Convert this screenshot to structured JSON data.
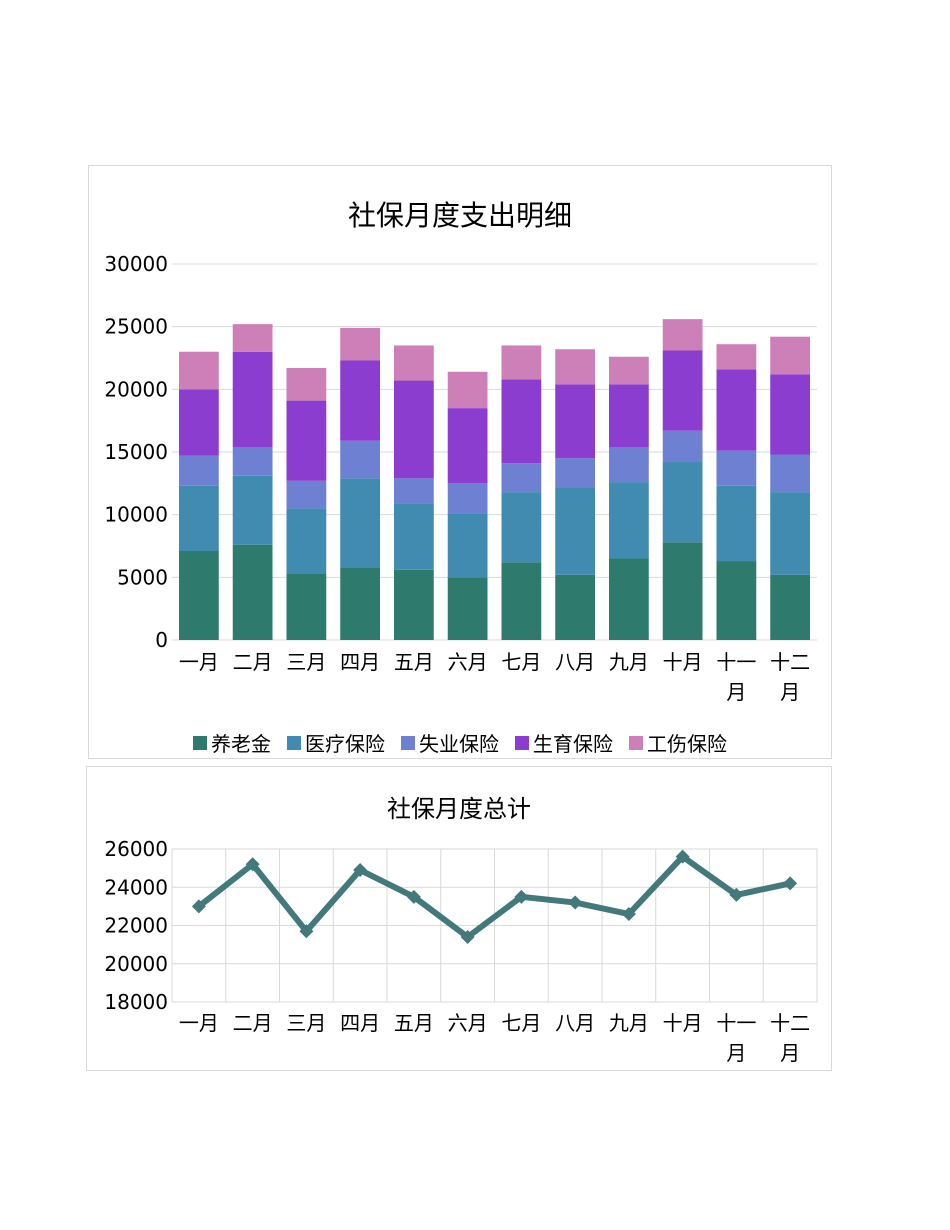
{
  "chart_data": [
    {
      "type": "bar",
      "stacked": true,
      "title": "社保月度支出明细",
      "categories": [
        "一月",
        "二月",
        "三月",
        "四月",
        "五月",
        "六月",
        "七月",
        "八月",
        "九月",
        "十月",
        "十一月",
        "十二月"
      ],
      "series": [
        {
          "name": "养老金",
          "color": "#2e7b6d",
          "values": [
            7100,
            7600,
            5300,
            5800,
            5600,
            5000,
            6200,
            5200,
            6500,
            7800,
            6300,
            5200
          ]
        },
        {
          "name": "医疗保险",
          "color": "#418bb0",
          "values": [
            5200,
            5500,
            5200,
            7100,
            5300,
            5100,
            5600,
            7000,
            6100,
            6400,
            6000,
            6600
          ]
        },
        {
          "name": "失业保险",
          "color": "#6e80d2",
          "values": [
            2400,
            2300,
            2200,
            3000,
            2000,
            2400,
            2300,
            2300,
            2800,
            2500,
            2800,
            3000
          ]
        },
        {
          "name": "生育保险",
          "color": "#8a3dcf",
          "values": [
            5300,
            7600,
            6400,
            6400,
            7800,
            6000,
            6700,
            5900,
            5000,
            6400,
            6500,
            6400
          ]
        },
        {
          "name": "工伤保险",
          "color": "#cd7fb8",
          "values": [
            3000,
            2200,
            2600,
            2600,
            2800,
            2900,
            2700,
            2800,
            2200,
            2500,
            2000,
            3000
          ]
        }
      ],
      "ylim": [
        0,
        30000
      ],
      "yticks": [
        0,
        5000,
        10000,
        15000,
        20000,
        25000,
        30000
      ],
      "grid": true,
      "legend": "bottom"
    },
    {
      "type": "line",
      "title": "社保月度总计",
      "categories": [
        "一月",
        "二月",
        "三月",
        "四月",
        "五月",
        "六月",
        "七月",
        "八月",
        "九月",
        "十月",
        "十一月",
        "十二月"
      ],
      "series": [
        {
          "color": "#44797c",
          "marker": "diamond",
          "values": [
            23000,
            25200,
            21700,
            24900,
            23500,
            21400,
            23500,
            23200,
            22600,
            25600,
            23600,
            24200
          ]
        }
      ],
      "ylim": [
        18000,
        26000
      ],
      "yticks": [
        18000,
        20000,
        22000,
        24000,
        26000
      ],
      "grid": true,
      "legend": "none"
    }
  ]
}
